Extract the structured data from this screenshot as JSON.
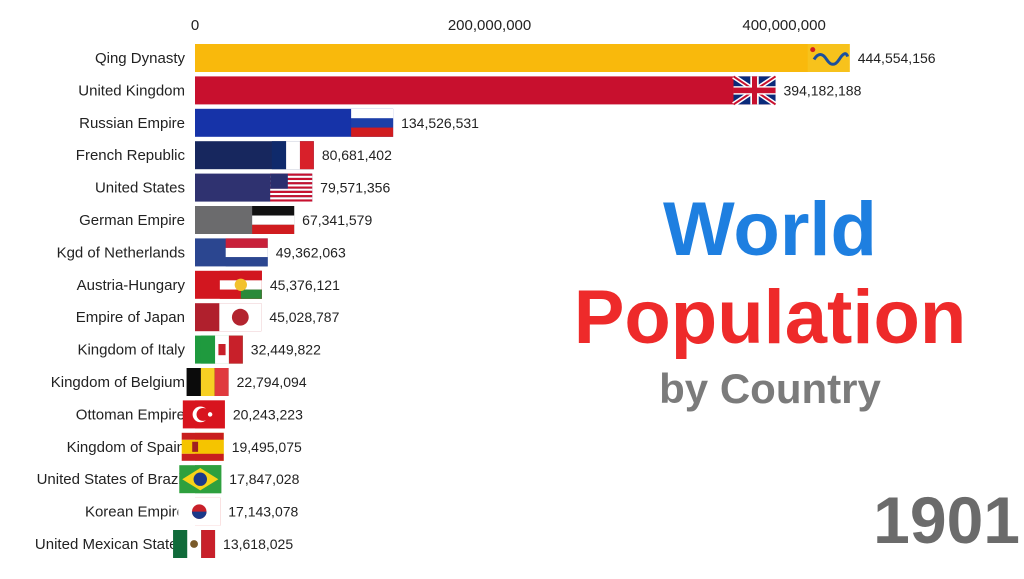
{
  "heading": {
    "line1": "World",
    "line2": "Population",
    "line3": "by Country",
    "year": "1901",
    "colors": {
      "line1": "#1e7fe0",
      "line2": "#ee2a2a",
      "line3": "#7b7b7b",
      "year": "#6b6b6b"
    }
  },
  "chart_data": {
    "type": "bar",
    "orientation": "horizontal",
    "title": "",
    "xlabel": "",
    "ylabel": "",
    "xlim": [
      0,
      460000000
    ],
    "ticks": [
      0,
      200000000,
      400000000
    ],
    "tick_labels": [
      "0",
      "200,000,000",
      "400,000,000"
    ],
    "grid": false,
    "categories": [
      "Qing Dynasty",
      "United Kingdom",
      "Russian Empire",
      "French Republic",
      "United States",
      "German Empire",
      "Kgd of Netherlands",
      "Austria-Hungary",
      "Empire of Japan",
      "Kingdom of Italy",
      "Kingdom of Belgium",
      "Ottoman Empire",
      "Kingdom of Spain",
      "United States of Brazil",
      "Korean Empire",
      "United Mexican States"
    ],
    "values": [
      444554156,
      394182188,
      134526531,
      80681402,
      79571356,
      67341579,
      49362063,
      45376121,
      45028787,
      32449822,
      22794094,
      20243223,
      19495075,
      17847028,
      17143078,
      13618025
    ],
    "value_labels": [
      "444,554,156",
      "394,182,188",
      "134,526,531",
      "80,681,402",
      "79,571,356",
      "67,341,579",
      "49,362,063",
      "45,376,121",
      "45,028,787",
      "32,449,822",
      "22,794,094",
      "20,243,223",
      "19,495,075",
      "17,847,028",
      "17,143,078",
      "13,618,025"
    ],
    "colors": [
      "#f9b90c",
      "#c8102e",
      "#1633a8",
      "#17275e",
      "#2f3270",
      "#6b6b6d",
      "#2b4690",
      "#d2161f",
      "#b0202d",
      "#1f9a3e",
      "#0b0b0b",
      "#d8141e",
      "#f2b813",
      "#2ea03e",
      "#d4161c",
      "#106b3a"
    ],
    "flags": [
      "qing-flag",
      "uk-flag",
      "russia-flag",
      "france-flag",
      "usa-flag",
      "german-empire-flag",
      "netherlands-flag",
      "austria-hungary-flag",
      "japan-flag",
      "italy-flag",
      "belgium-flag",
      "ottoman-flag",
      "spain-flag",
      "brazil-flag",
      "korea-flag",
      "mexico-flag"
    ]
  }
}
